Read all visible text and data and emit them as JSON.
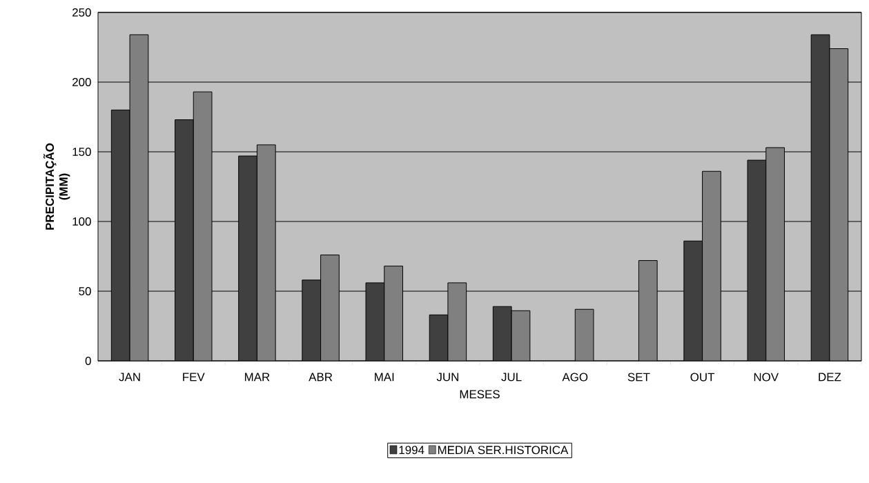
{
  "chart_data": {
    "type": "bar",
    "xlabel": "MESES",
    "ylabel": "PRECIPITAÇÃO (MM)",
    "categories": [
      "JAN",
      "FEV",
      "MAR",
      "ABR",
      "MAI",
      "JUN",
      "JUL",
      "AGO",
      "SET",
      "OUT",
      "NOV",
      "DEZ"
    ],
    "series": [
      {
        "name": "1994",
        "color": "#404040",
        "values": [
          180,
          173,
          147,
          58,
          56,
          33,
          39,
          null,
          null,
          86,
          144,
          234
        ]
      },
      {
        "name": "MEDIA SER.HISTORICA",
        "color": "#808080",
        "values": [
          234,
          193,
          155,
          76,
          68,
          56,
          36,
          37,
          72,
          136,
          153,
          224
        ]
      }
    ],
    "ylim": [
      0,
      250
    ],
    "yticks": [
      0,
      50,
      100,
      150,
      200,
      250
    ],
    "grid": "y",
    "legend": "bottom"
  }
}
